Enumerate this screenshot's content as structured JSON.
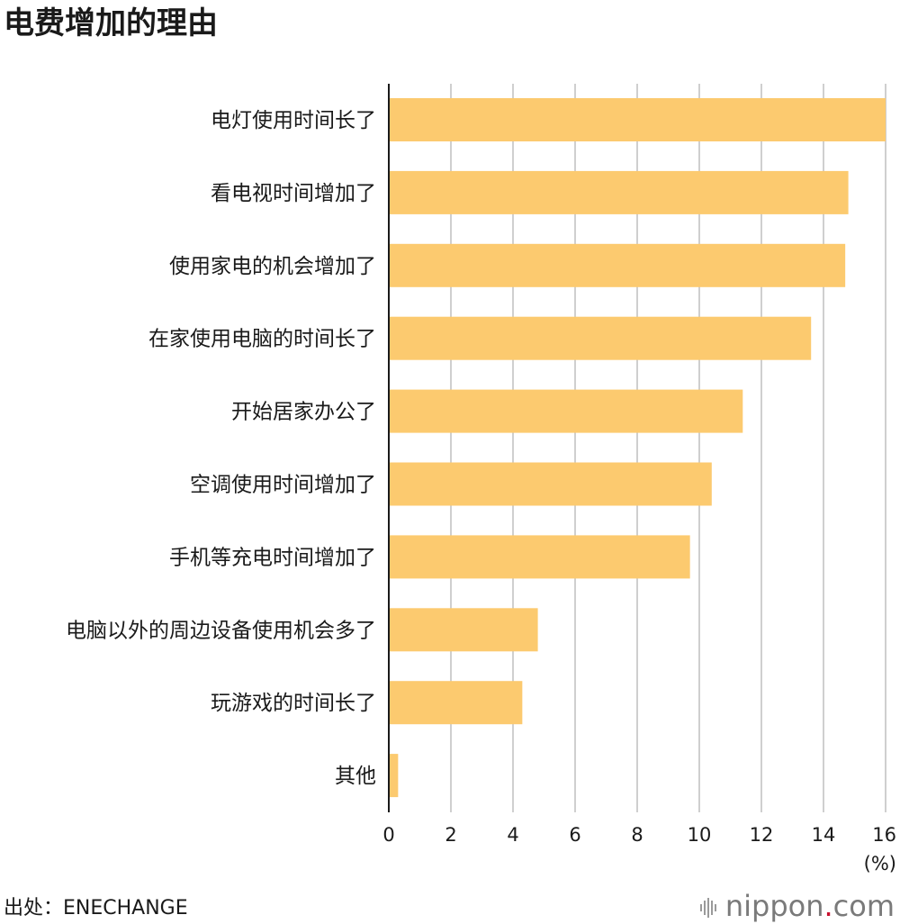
{
  "header": {
    "title": "电费增加的理由"
  },
  "chart_data": {
    "type": "bar",
    "orientation": "horizontal",
    "title": "电费增加的理由",
    "unit_label": "(%)",
    "categories": [
      "电灯使用时间长了",
      "看电视时间增加了",
      "使用家电的机会增加了",
      "在家使用电脑的时间长了",
      "开始居家办公了",
      "空调使用时间增加了",
      "手机等充电时间增加了",
      "电脑以外的周边设备使用机会多了",
      "玩游戏的时间长了",
      "其他"
    ],
    "values": [
      16.0,
      14.8,
      14.7,
      13.6,
      11.4,
      10.4,
      9.7,
      4.8,
      4.3,
      0.3
    ],
    "xlim": [
      0,
      16
    ],
    "xticks": [
      0,
      2,
      4,
      6,
      8,
      10,
      12,
      14,
      16
    ],
    "grid": true,
    "bar_color": "#fcca6f"
  },
  "footer": {
    "source": "出处：ENECHANGE",
    "brand_name": "nippon",
    "brand_dot": ".",
    "brand_tld": "com"
  }
}
